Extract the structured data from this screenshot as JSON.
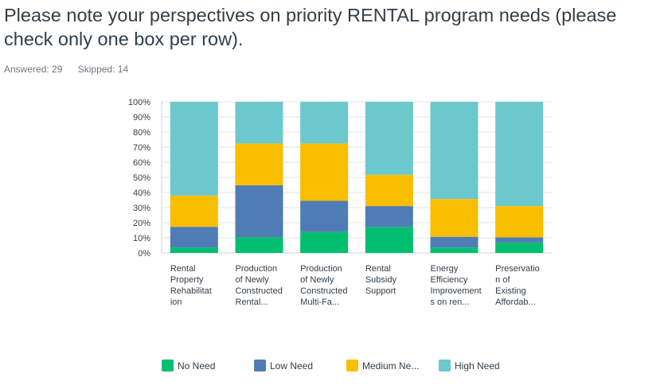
{
  "question": {
    "title": "Please note your perspectives on priority RENTAL program needs (please check only one box per row)."
  },
  "stats": {
    "answered": "Answered: 29",
    "skipped": "Skipped: 14"
  },
  "chart_data": {
    "type": "bar",
    "stacked": true,
    "percent": true,
    "title": "",
    "xlabel": "",
    "ylabel": "",
    "ylim": [
      0,
      100
    ],
    "yticks": [
      "0%",
      "10%",
      "20%",
      "30%",
      "40%",
      "50%",
      "60%",
      "70%",
      "80%",
      "90%",
      "100%"
    ],
    "grid": true,
    "legend_position": "bottom",
    "categories": [
      [
        "Rental",
        "Property",
        "Rehabilitat",
        "ion"
      ],
      [
        "Production",
        "of Newly",
        "Constructed",
        "Rental..."
      ],
      [
        "Production",
        "of Newly",
        "Constructed",
        "Multi-Fa..."
      ],
      [
        "Rental",
        "Subsidy",
        "Support"
      ],
      [
        "Energy",
        "Efficiency",
        "Improvement",
        "s on ren..."
      ],
      [
        "Preservatio",
        "n of",
        "Existing",
        "Affordab..."
      ]
    ],
    "series": [
      {
        "name": "No Need",
        "color": "#00bf6f",
        "values": [
          3.5,
          10.3,
          13.8,
          17.2,
          3.6,
          6.9
        ]
      },
      {
        "name": "Low Need",
        "color": "#507cb6",
        "values": [
          13.8,
          34.5,
          20.7,
          13.8,
          7.1,
          3.4
        ]
      },
      {
        "name": "Medium Ne...",
        "color": "#f9be00",
        "values": [
          20.7,
          27.6,
          37.9,
          20.7,
          25.0,
          20.7
        ]
      },
      {
        "name": "High Need",
        "color": "#6bc8cd",
        "values": [
          62.0,
          27.6,
          27.6,
          48.3,
          64.3,
          69.0
        ]
      }
    ]
  }
}
